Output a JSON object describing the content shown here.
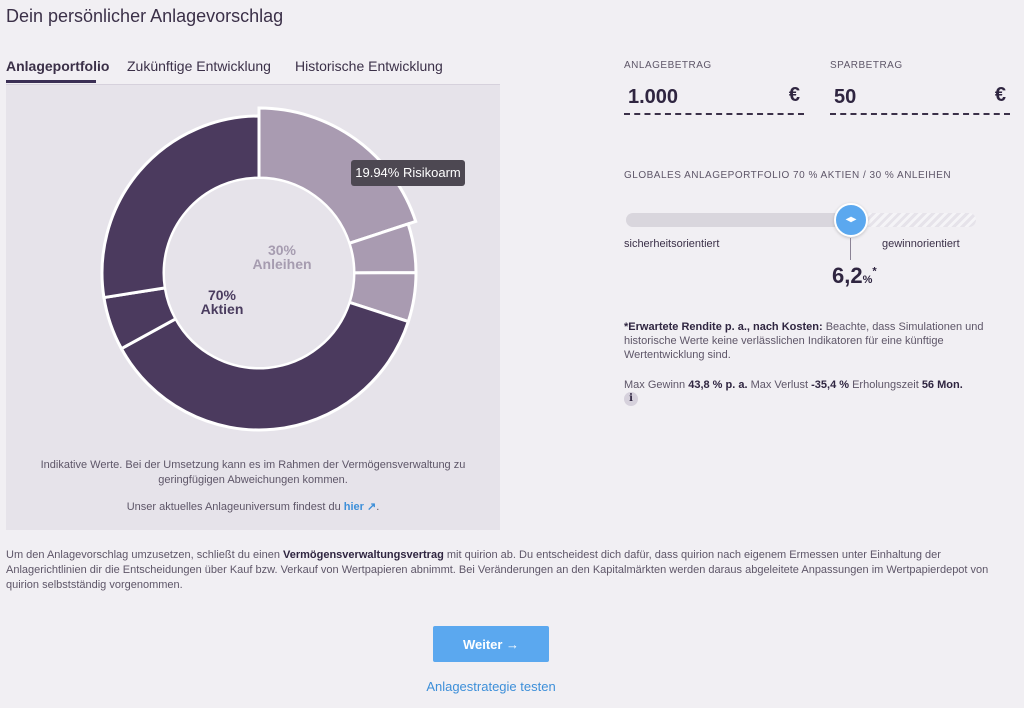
{
  "page_title": "Dein persönlicher Anlagevorschlag",
  "tabs": [
    {
      "label": "Anlageportfolio",
      "active": true
    },
    {
      "label": "Zukünftige Entwicklung",
      "active": false
    },
    {
      "label": "Historische Entwicklung",
      "active": false
    }
  ],
  "donut": {
    "tooltip": "19.94% Risikoarm",
    "center_bonds_pct": "30%",
    "center_bonds_label": "Anleihen",
    "center_stocks_pct": "70%",
    "center_stocks_label": "Aktien",
    "colors": {
      "stocks": "#4b3a5e",
      "bonds": "#a99bb1",
      "bonds_light": "#a69cb0",
      "stocks_mid": "#6b5a7d"
    },
    "segments_pct": [
      19.94,
      5.03,
      5.03,
      37.0,
      5.5,
      27.5
    ]
  },
  "panel": {
    "note": "Indikative Werte. Bei der Umsetzung kann es im Rahmen der Vermögensverwaltung zu geringfügigen Abweichungen kommen.",
    "universe_prefix": "Unser aktuelles Anlageuniversum findest du ",
    "universe_link": "hier ↗",
    "universe_suffix": "."
  },
  "anlagebetrag": {
    "label": "ANLAGEBETRAG",
    "value": "1.000",
    "currency": "€"
  },
  "sparbetrag": {
    "label": "SPARBETRAG",
    "value": "50",
    "currency": "€"
  },
  "portfolio": {
    "title": "GLOBALES ANLAGEPORTFOLIO 70 % AKTIEN / 30 % ANLEIHEN",
    "slider_left": "sicherheitsorientiert",
    "slider_right": "gewinnorientiert",
    "slider_position_pct": 64,
    "rendite_value": "6,2",
    "rendite_unit": "%",
    "rendite_marker": "*"
  },
  "disclaimer": {
    "bold": "*Erwartete Rendite p. a., nach Kosten:",
    "text": " Beachte, dass Simulationen und historische Werte keine verlässlichen Indikatoren für eine künftige Wertentwicklung sind."
  },
  "stats": {
    "max_gain_label": "Max Gewinn",
    "max_gain_value": "43,8 % p. a.",
    "max_loss_label": "Max Verlust",
    "max_loss_value": "-35,4 %",
    "recovery_label": "Erholungszeit",
    "recovery_value": "56 Mon.",
    "info_glyph": "i"
  },
  "bottom": {
    "prefix": "Um den Anlagevorschlag umzusetzen, schließt du einen ",
    "bold": "Vermögensverwaltungsvertrag",
    "suffix": " mit quirion ab. Du entscheidest dich dafür, dass quirion nach eigenem Ermessen unter Einhaltung der Anlagerichtlinien dir die Entscheidungen über Kauf bzw. Verkauf von Wertpapieren abnimmt. Bei Veränderungen an den Kapitalmärkten werden daraus abgeleitete Anpassungen im Wertpapierdepot von quirion selbstständig vorgenommen."
  },
  "next_button": "Weiter →",
  "test_link": "Anlagestrategie testen"
}
